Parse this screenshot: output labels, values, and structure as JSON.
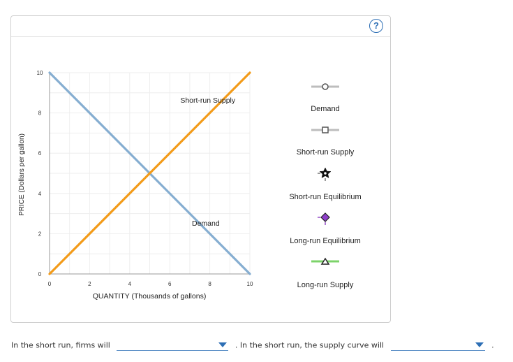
{
  "help": {
    "label": "?"
  },
  "chart_data": {
    "type": "line",
    "xlabel": "QUANTITY (Thousands of gallons)",
    "ylabel": "PRICE (Dollars per gallon)",
    "xlim": [
      0,
      10
    ],
    "ylim": [
      0,
      10
    ],
    "xticks": [
      0,
      2,
      4,
      6,
      8,
      10
    ],
    "yticks": [
      0,
      2,
      4,
      6,
      8,
      10
    ],
    "series": [
      {
        "name": "Demand",
        "color": "#86aed1",
        "x": [
          0,
          10
        ],
        "y": [
          10,
          0
        ]
      },
      {
        "name": "Short-run Supply",
        "color": "#f39b19",
        "x": [
          0,
          10
        ],
        "y": [
          0,
          10
        ]
      }
    ],
    "annotations": [
      {
        "text": "Short-run Supply",
        "x": 7.9,
        "y": 8.5
      },
      {
        "text": "Demand",
        "x": 7.8,
        "y": 2.4
      }
    ]
  },
  "legend": {
    "items": [
      {
        "label": "Demand",
        "icon": "demand-circle-tool-icon"
      },
      {
        "label": "Short-run Supply",
        "icon": "supply-square-tool-icon"
      },
      {
        "label": "Short-run Equilibrium",
        "icon": "black-star-marker-icon"
      },
      {
        "label": "Long-run Equilibrium",
        "icon": "purple-diamond-marker-icon"
      },
      {
        "label": "Long-run Supply",
        "icon": "green-triangle-line-tool-icon"
      }
    ]
  },
  "footer": {
    "text1": "In the short run, firms will",
    "dropdown1_value": "",
    "text2": ". In the short run, the supply curve will",
    "dropdown2_value": "",
    "text3": "."
  }
}
